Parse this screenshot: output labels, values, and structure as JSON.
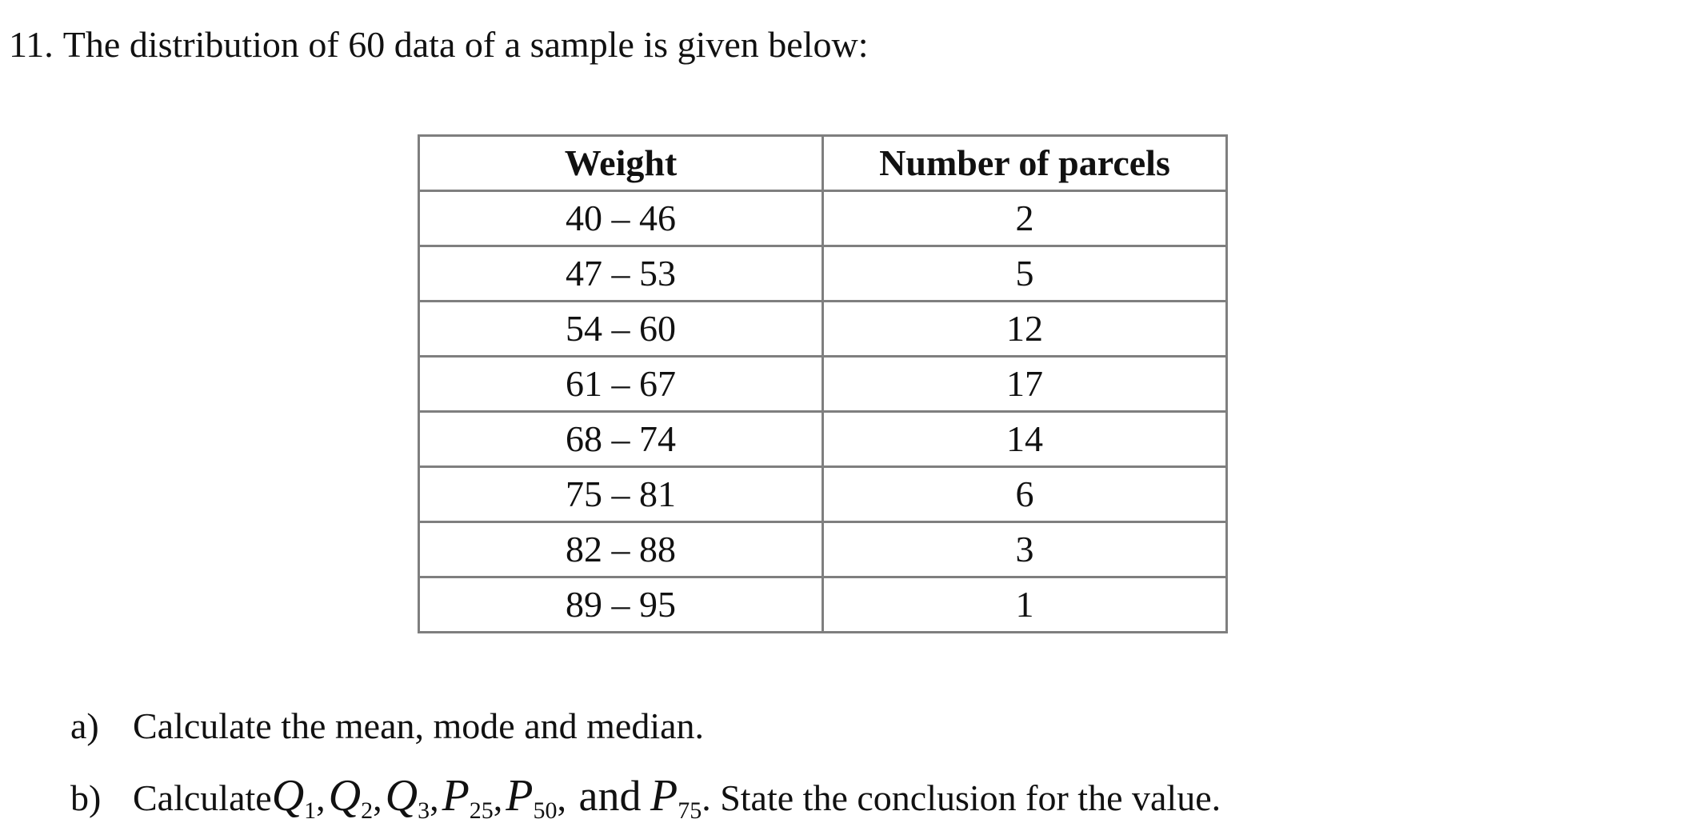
{
  "question": {
    "number": "11.",
    "text": "The distribution of 60 data of a sample is given below:"
  },
  "table": {
    "headers": [
      "Weight",
      "Number of parcels"
    ],
    "rows": [
      [
        "40 – 46",
        "2"
      ],
      [
        "47 – 53",
        "5"
      ],
      [
        "54 – 60",
        "12"
      ],
      [
        "61 – 67",
        "17"
      ],
      [
        "68 – 74",
        "14"
      ],
      [
        "75 – 81",
        "6"
      ],
      [
        "82 – 88",
        "3"
      ],
      [
        "89 – 95",
        "1"
      ]
    ]
  },
  "parts": {
    "a": {
      "label": "a)",
      "text": "Calculate the mean, mode and median."
    },
    "b": {
      "label": "b)",
      "prefix": "Calculate",
      "symbols": [
        {
          "var": "Q",
          "sub": "1"
        },
        {
          "var": "Q",
          "sub": "2"
        },
        {
          "var": "Q",
          "sub": "3"
        },
        {
          "var": "P",
          "sub": "25"
        },
        {
          "var": "P",
          "sub": "50"
        }
      ],
      "and_text": "and",
      "last_symbol": {
        "var": "P",
        "sub": "75"
      },
      "suffix": ". State the conclusion for the value."
    }
  }
}
